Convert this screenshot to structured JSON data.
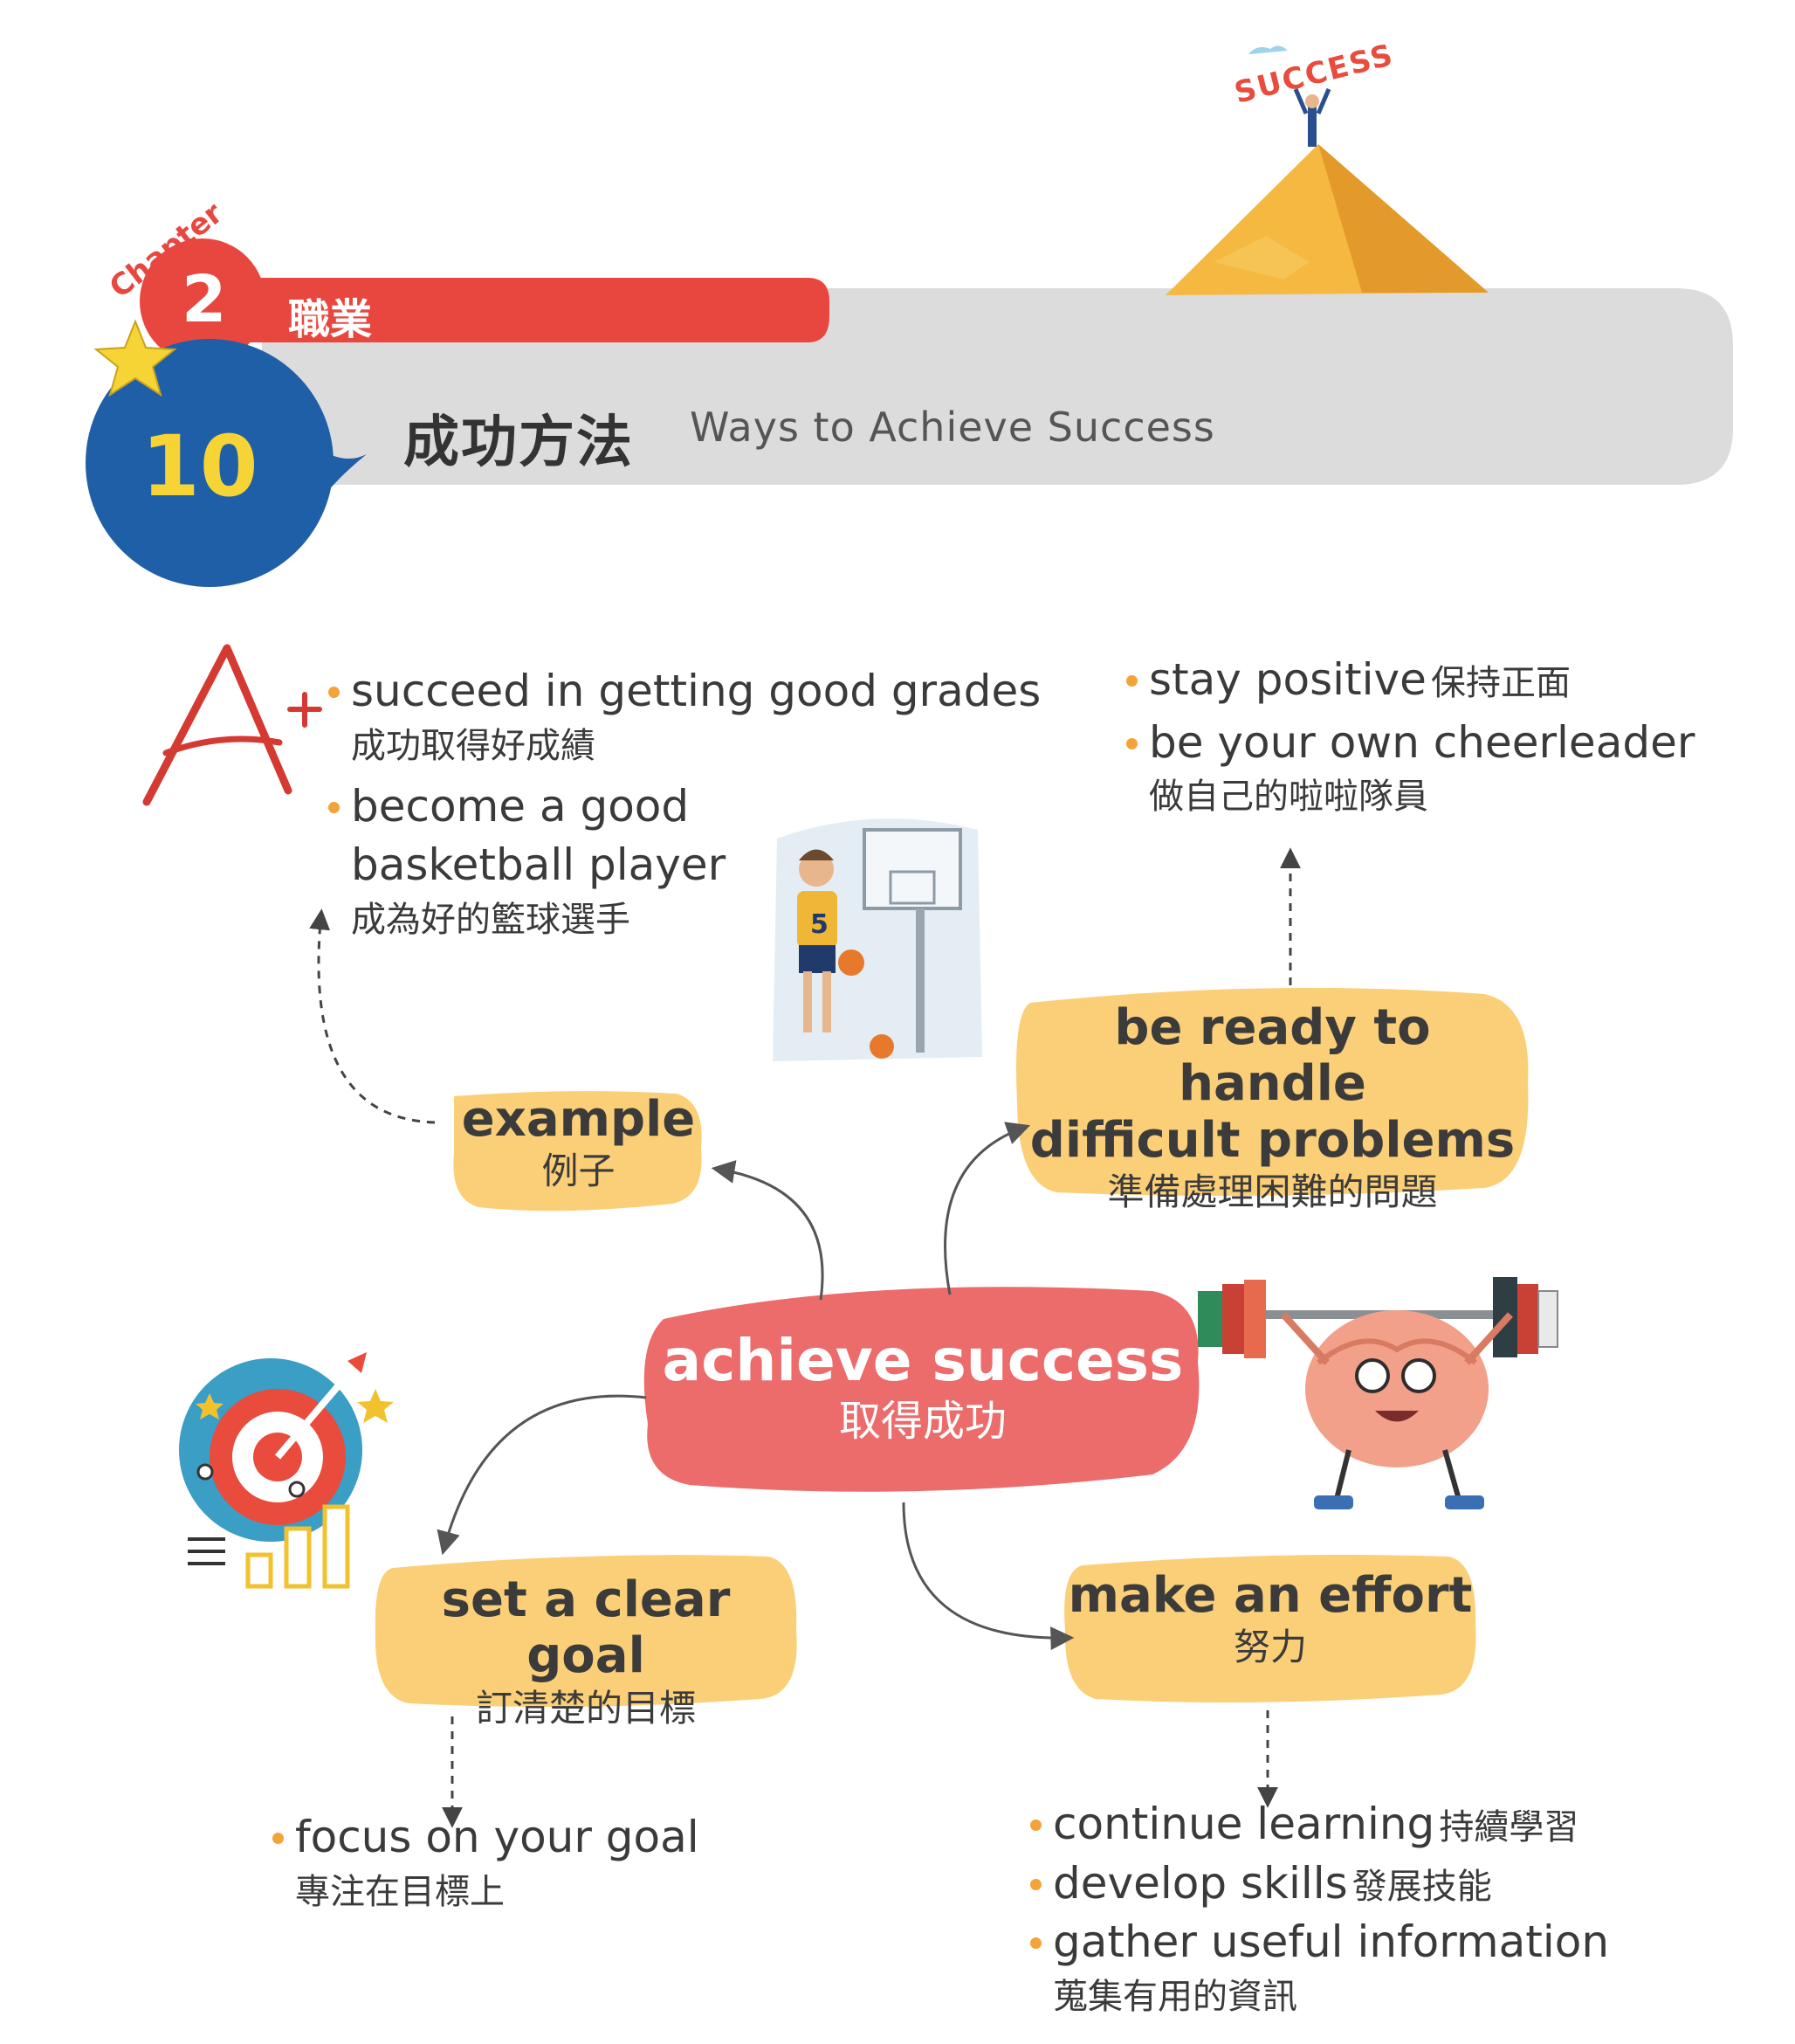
{
  "header": {
    "chapter_word": "Chapter",
    "chapter_number": "2",
    "unit_title": "職業",
    "lesson_number": "10",
    "lesson_title_zh": "成功方法",
    "lesson_title_en": "Ways to Achieve Success",
    "illustration_word": "SUCCESS"
  },
  "colors": {
    "red": "#e8473f",
    "blue": "#1f5fa8",
    "yellow": "#f6d436",
    "bubble": "#fbcf77",
    "central": "#ec6b6b",
    "bullet": "#f2a43a",
    "banner_gray": "#dcdcdc"
  },
  "diagram": {
    "central": {
      "en": "achieve success",
      "zh": "取得成功"
    },
    "example": {
      "en": "example",
      "zh": "例子"
    },
    "ready": {
      "en_line1": "be ready to handle",
      "en_line2": "difficult problems",
      "zh": "準備處理困難的問題"
    },
    "goal": {
      "en": "set a clear goal",
      "zh": "訂清楚的目標"
    },
    "effort": {
      "en": "make an effort",
      "zh": "努力"
    }
  },
  "example_items": [
    {
      "en": "succeed in getting good grades",
      "zh": "成功取得好成績"
    },
    {
      "en_line1": "become a good",
      "en_line2": "basketball player",
      "zh": "成為好的籃球選手"
    }
  ],
  "ready_items": [
    {
      "en": "stay positive",
      "zh": "保持正面"
    },
    {
      "en": "be your own cheerleader",
      "zh": "做自己的啦啦隊員"
    }
  ],
  "goal_items": [
    {
      "en": "focus on your goal",
      "zh": "專注在目標上"
    }
  ],
  "effort_items": [
    {
      "en": "continue learning",
      "zh": "持續學習"
    },
    {
      "en": "develop skills",
      "zh": "發展技能"
    },
    {
      "en": "gather useful information",
      "zh": "蒐集有用的資訊"
    }
  ],
  "illustrations": {
    "grade_mark": "A+",
    "player_jersey": "5",
    "icons": [
      "grade-a-plus-icon",
      "basketball-player-icon",
      "brain-weightlifting-icon",
      "target-chart-icon",
      "mountain-success-icon"
    ]
  }
}
